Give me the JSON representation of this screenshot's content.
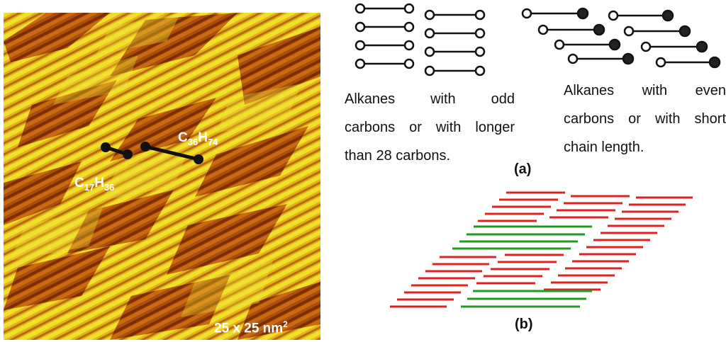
{
  "stm_image": {
    "molecule_long": {
      "formula_c": "C",
      "c_count": "36",
      "formula_h": "H",
      "h_count": "74"
    },
    "molecule_short": {
      "formula_c": "C",
      "c_count": "17",
      "formula_h": "H",
      "h_count": "36"
    },
    "scale": {
      "text": "25 x 25 nm",
      "exponent": "2"
    }
  },
  "panel_a": {
    "tag": "(a)",
    "odd_caption_lines": [
      "Alkanes with odd",
      "carbons or with longer",
      "than 28 carbons."
    ],
    "even_caption_lines": [
      "Alkanes with even",
      "carbons or with short",
      "chain length."
    ]
  },
  "panel_b": {
    "tag": "(b)"
  },
  "colors": {
    "stm_dark": "#7a2a02",
    "stm_mid": "#d9760f",
    "stm_bright": "#e8d41f",
    "lamella_red": "#dd2222",
    "lamella_green": "#229922"
  }
}
